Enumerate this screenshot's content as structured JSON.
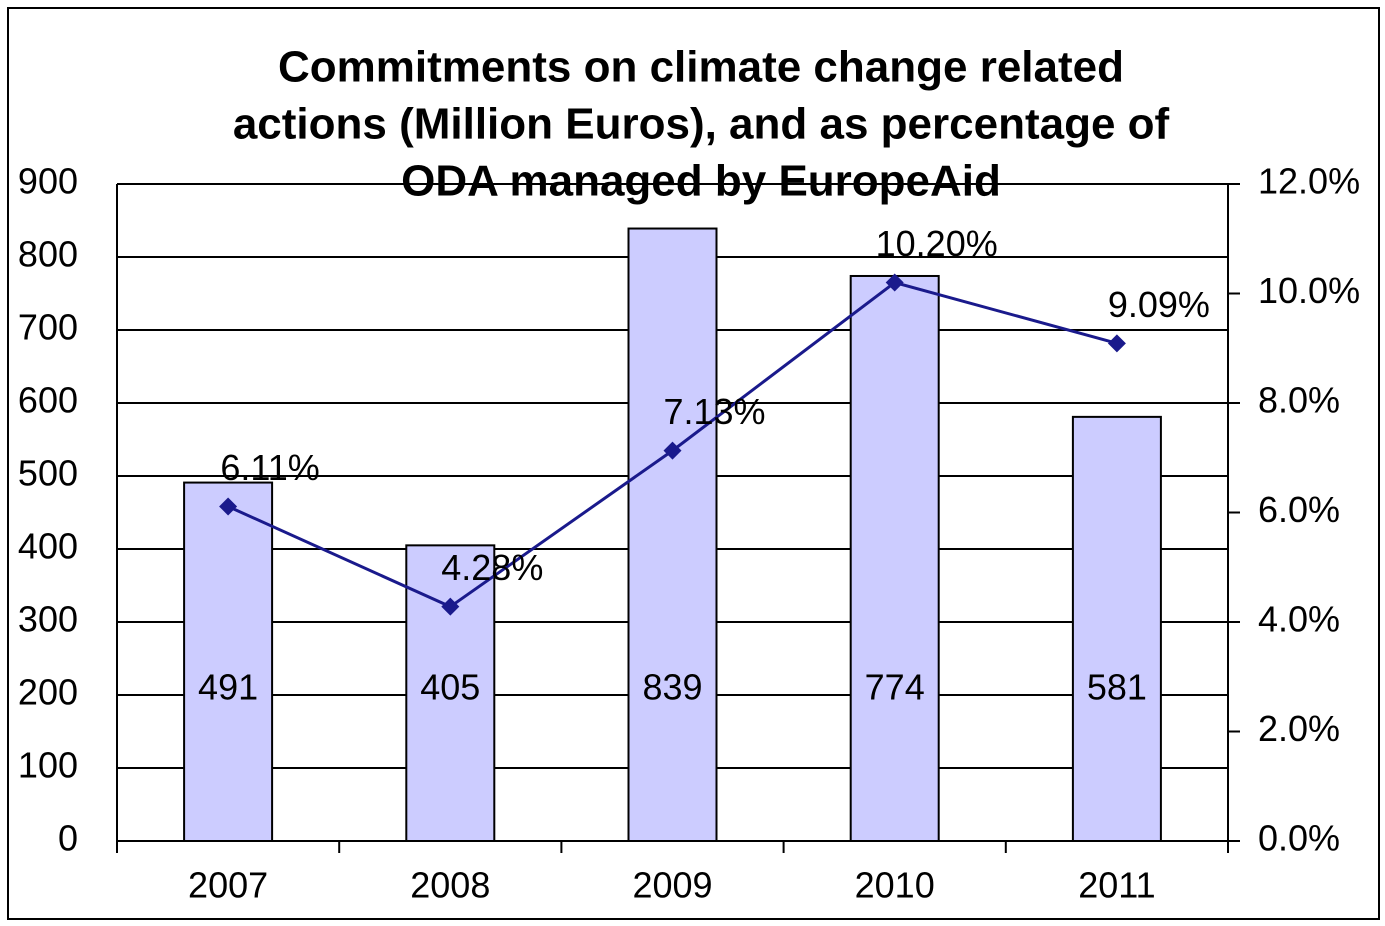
{
  "chart_data": {
    "type": "bar",
    "title": [
      "Commitments  on climate change related",
      "actions (Million Euros), and as percentage of",
      "ODA managed by EuropeAid"
    ],
    "categories": [
      "2007",
      "2008",
      "2009",
      "2010",
      "2011"
    ],
    "series": [
      {
        "type": "bar",
        "color": "#ccccff",
        "values": [
          491,
          405,
          839,
          774,
          581
        ]
      },
      {
        "type": "line",
        "axis": "y2",
        "color": "#1a1a8c",
        "values": [
          6.11,
          4.28,
          7.13,
          10.2,
          9.09
        ],
        "value_labels": [
          "6.11%",
          "4.28%",
          "7.13%",
          "10.20%",
          "9.09%"
        ]
      }
    ],
    "ylim": [
      0,
      900
    ],
    "yticks": [
      0,
      100,
      200,
      300,
      400,
      500,
      600,
      700,
      800,
      900
    ],
    "y2lim": [
      0,
      12
    ],
    "y2ticks": [
      {
        "value": 0,
        "label": "0.0%"
      },
      {
        "value": 2,
        "label": "2.0%"
      },
      {
        "value": 4,
        "label": "4.0%"
      },
      {
        "value": 6,
        "label": "6.0%"
      },
      {
        "value": 8,
        "label": "8.0%"
      },
      {
        "value": 10,
        "label": "10.0%"
      },
      {
        "value": 12,
        "label": "12.0%"
      }
    ],
    "grid": true
  }
}
